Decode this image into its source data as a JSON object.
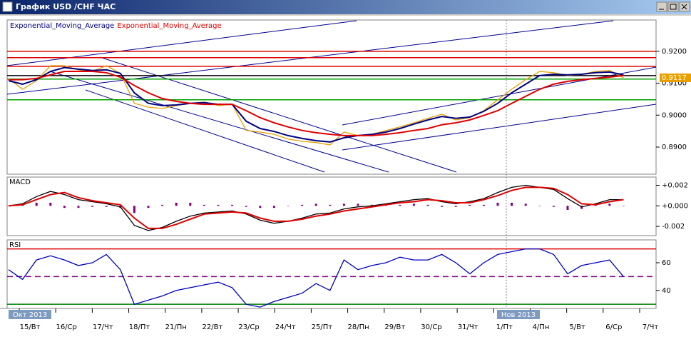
{
  "window": {
    "title": "График USD /CHF ЧАС"
  },
  "time_axis": {
    "days": [
      "15/Вт",
      "16/Ср",
      "17/Чт",
      "18/Пт",
      "21/Пн",
      "22/Вт",
      "23/Ср",
      "24/Чт",
      "25/Пт",
      "28/Пн",
      "29/Вт",
      "30/Ср",
      "31/Чт",
      "1/Пт",
      "4/Пн",
      "5/Вт",
      "6/Ср",
      "7/Чт"
    ],
    "months": [
      "Окт 2013",
      "Нов 2013"
    ]
  },
  "chart_data": [
    {
      "type": "line",
      "ylim": [
        0.8815,
        0.9298
      ],
      "yticks": [
        {
          "value": 0.92,
          "label": "0.9200"
        },
        {
          "value": 0.91,
          "label": "0.9100"
        },
        {
          "value": 0.9,
          "label": "0.9000"
        },
        {
          "value": 0.89,
          "label": "0.8900"
        }
      ],
      "hlines": [
        {
          "color": "#e00000",
          "values": [
            0.92,
            0.918,
            0.9153
          ]
        },
        {
          "color": "#00a000",
          "values": [
            0.9113,
            0.9048
          ]
        },
        {
          "color": "#000000",
          "values": [
            0.9124
          ]
        }
      ],
      "series": [
        {
          "color": "#e8a000",
          "values": [
            0.9115,
            0.9081,
            0.9108,
            0.9155,
            0.9155,
            0.9142,
            0.9137,
            0.9155,
            0.9131,
            0.9037,
            0.9025,
            0.9021,
            0.903,
            0.9037,
            0.9041,
            0.903,
            0.9034,
            0.8952,
            0.8947,
            0.894,
            0.8925,
            0.8918,
            0.8914,
            0.8907,
            0.8947,
            0.8936,
            0.894,
            0.8952,
            0.8963,
            0.8976,
            0.899,
            0.9003,
            0.8985,
            0.8992,
            0.9014,
            0.9048,
            0.9081,
            0.9111,
            0.9137,
            0.9133,
            0.9124,
            0.9128,
            0.9137,
            0.914,
            0.9117
          ],
          "value_labels": [
            null,
            null,
            null,
            null,
            null,
            null,
            null,
            null,
            null,
            null,
            null,
            null,
            null,
            null,
            null,
            null,
            null,
            null,
            null,
            null,
            null,
            null,
            null,
            null,
            null,
            null,
            null,
            null,
            null,
            null,
            null,
            null,
            null,
            null,
            null,
            null,
            null,
            null,
            null,
            null,
            null,
            null,
            null,
            null,
            "0.9117"
          ]
        },
        {
          "name": "Exponential_Moving_Average",
          "color": "#000080",
          "values": [
            0.9108,
            0.9097,
            0.9111,
            0.9137,
            0.9149,
            0.9144,
            0.914,
            0.9142,
            0.9131,
            0.907,
            0.9037,
            0.903,
            0.9032,
            0.9037,
            0.9039,
            0.9034,
            0.9034,
            0.8981,
            0.8958,
            0.8949,
            0.8936,
            0.8927,
            0.892,
            0.8916,
            0.8929,
            0.8936,
            0.894,
            0.8947,
            0.8958,
            0.8972,
            0.8985,
            0.8996,
            0.899,
            0.8994,
            0.9012,
            0.9037,
            0.907,
            0.9097,
            0.9124,
            0.9128,
            0.9126,
            0.9128,
            0.9133,
            0.9135,
            0.9126
          ]
        },
        {
          "name": "Exponential_Moving_Average",
          "color": "#e00000",
          "values": [
            0.9111,
            0.9111,
            0.9115,
            0.9126,
            0.9137,
            0.9137,
            0.9137,
            0.9133,
            0.9119,
            0.9093,
            0.907,
            0.9052,
            0.9043,
            0.9037,
            0.9034,
            0.9034,
            0.9034,
            0.9014,
            0.8992,
            0.8976,
            0.8963,
            0.8952,
            0.8945,
            0.894,
            0.8936,
            0.8936,
            0.8936,
            0.894,
            0.8945,
            0.8952,
            0.8958,
            0.897,
            0.8976,
            0.8985,
            0.8999,
            0.9014,
            0.9037,
            0.9059,
            0.9081,
            0.9097,
            0.9106,
            0.9111,
            0.9115,
            0.9119,
            0.9124
          ]
        }
      ]
    },
    {
      "type": "macd",
      "title": "MACD",
      "ylim": [
        -0.0029,
        0.0028
      ],
      "yticks": [
        {
          "value": 0.002,
          "label": "+0.002"
        },
        {
          "value": 0,
          "label": "+0.000"
        },
        {
          "value": -0.002,
          "label": "-0.002"
        }
      ],
      "histogram": {
        "color": "#800080",
        "values": [
          0,
          0.0001,
          0.0003,
          0.0003,
          -0.0002,
          -0.0002,
          -0.0001,
          -0.0001,
          -0.0002,
          -0.0007,
          -0.0002,
          0.0001,
          0.0003,
          0.0003,
          0.0001,
          0.0001,
          0.0001,
          -0.0001,
          -0.0002,
          -0.0002,
          0,
          0.0001,
          0.0002,
          0.0001,
          0.0002,
          0.0002,
          0.0001,
          0.0001,
          0.0001,
          0.0002,
          0.0001,
          -0.0001,
          -0.0001,
          0.0001,
          0.0001,
          0.0003,
          0.0003,
          0.0002,
          0,
          -0.0001,
          -0.0004,
          -0.0003,
          0.0001,
          0.0002,
          0
        ]
      },
      "series": [
        {
          "color": "#000000",
          "values": [
            0,
            0.0002,
            0.0009,
            0.0014,
            0.0011,
            0.0006,
            0.0004,
            0.0002,
            -0.0001,
            -0.0019,
            -0.0024,
            -0.0021,
            -0.0015,
            -0.001,
            -0.0007,
            -0.0006,
            -0.0005,
            -0.0008,
            -0.0014,
            -0.0017,
            -0.0015,
            -0.0012,
            -0.0008,
            -0.0007,
            -0.0003,
            -0.0001,
            0,
            0.0002,
            0.0004,
            0.0006,
            0.0007,
            0.0004,
            0.0002,
            0.0004,
            0.0007,
            0.0013,
            0.0018,
            0.002,
            0.0018,
            0.0016,
            0.0007,
            -0.0001,
            0.0002,
            0.0006,
            0.0006
          ]
        },
        {
          "color": "#e00000",
          "values": [
            0,
            0.0001,
            0.0006,
            0.0011,
            0.0013,
            0.0008,
            0.0005,
            0.0003,
            0.0001,
            -0.0012,
            -0.0022,
            -0.0022,
            -0.0018,
            -0.0013,
            -0.0008,
            -0.0007,
            -0.0006,
            -0.0007,
            -0.0012,
            -0.0015,
            -0.0015,
            -0.0013,
            -0.001,
            -0.0008,
            -0.0005,
            -0.0003,
            -0.0001,
            0.0001,
            0.0003,
            0.0004,
            0.0006,
            0.0005,
            0.0003,
            0.0003,
            0.0006,
            0.001,
            0.0015,
            0.0018,
            0.0018,
            0.0017,
            0.0011,
            0.0002,
            0.0001,
            0.0004,
            0.0006
          ]
        }
      ]
    },
    {
      "type": "line",
      "title": "RSI",
      "ylim": [
        27,
        76.5
      ],
      "yticks": [
        60,
        40
      ],
      "hlines": [
        {
          "color": "#e00000",
          "values": [
            70
          ]
        },
        {
          "color": "#800080",
          "dashed": true,
          "values": [
            50
          ]
        },
        {
          "color": "#008000",
          "values": [
            30
          ]
        }
      ],
      "series": [
        {
          "color": "#0000c0",
          "values": [
            55,
            48,
            62,
            65,
            62,
            58,
            60,
            66,
            55,
            30,
            33,
            36,
            40,
            42,
            44,
            46,
            42,
            30,
            28,
            32,
            35,
            38,
            45,
            40,
            62,
            55,
            58,
            60,
            64,
            62,
            62,
            66,
            60,
            52,
            60,
            66,
            68,
            70,
            70,
            66,
            52,
            58,
            60,
            62,
            50
          ]
        }
      ]
    }
  ]
}
